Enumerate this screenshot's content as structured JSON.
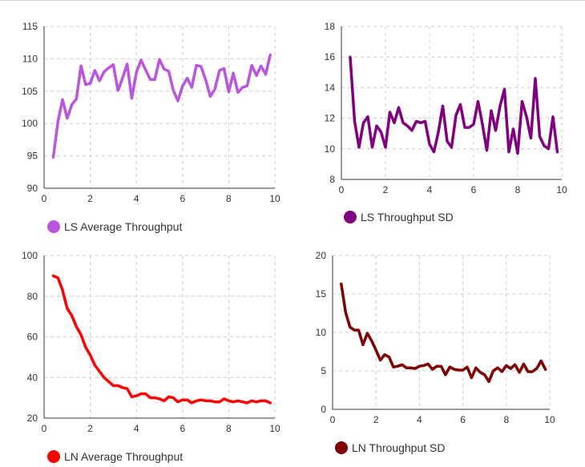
{
  "chart_data": [
    {
      "type": "line",
      "title": "",
      "xlabel": "",
      "ylabel": "",
      "xlim": [
        0,
        10
      ],
      "ylim": [
        90,
        115
      ],
      "xticks": [
        0,
        2,
        4,
        6,
        8,
        10
      ],
      "yticks": [
        90,
        95,
        100,
        105,
        110,
        115
      ],
      "grid": true,
      "legend_position": "bottom-left",
      "series": [
        {
          "name": "LS Average Throughput",
          "color": "#bb55dd",
          "x": [
            0.4,
            0.6,
            0.8,
            1.0,
            1.2,
            1.4,
            1.6,
            1.8,
            2.0,
            2.2,
            2.4,
            2.6,
            2.8,
            3.0,
            3.2,
            3.4,
            3.6,
            3.8,
            4.0,
            4.2,
            4.4,
            4.6,
            4.8,
            5.0,
            5.2,
            5.4,
            5.6,
            5.8,
            6.0,
            6.2,
            6.4,
            6.6,
            6.8,
            7.0,
            7.2,
            7.4,
            7.6,
            7.8,
            8.0,
            8.2,
            8.4,
            8.6,
            8.8,
            9.0,
            9.2,
            9.4,
            9.6,
            9.8
          ],
          "y": [
            94.8,
            100.3,
            103.7,
            100.8,
            102.9,
            103.8,
            108.9,
            106.0,
            106.2,
            108.2,
            106.6,
            108.0,
            108.6,
            109.1,
            105.1,
            107.0,
            109.2,
            103.9,
            107.9,
            109.8,
            108.3,
            106.8,
            106.8,
            109.9,
            108.4,
            108.1,
            105.1,
            103.5,
            105.8,
            107.0,
            105.6,
            109.0,
            108.8,
            106.8,
            104.2,
            105.3,
            108.2,
            108.5,
            104.9,
            107.8,
            104.8,
            105.6,
            105.8,
            109.0,
            107.4,
            108.9,
            107.6,
            110.6
          ]
        }
      ]
    },
    {
      "type": "line",
      "title": "",
      "xlabel": "",
      "ylabel": "",
      "xlim": [
        0,
        10
      ],
      "ylim": [
        8,
        18
      ],
      "xticks": [
        0,
        2,
        4,
        6,
        8,
        10
      ],
      "yticks": [
        8,
        10,
        12,
        14,
        16,
        18
      ],
      "grid": true,
      "legend_position": "bottom-left",
      "series": [
        {
          "name": "LS Throughput SD",
          "color": "#800080",
          "x": [
            0.4,
            0.6,
            0.8,
            1.0,
            1.2,
            1.4,
            1.6,
            1.8,
            2.0,
            2.2,
            2.4,
            2.6,
            2.8,
            3.0,
            3.2,
            3.4,
            3.6,
            3.8,
            4.0,
            4.2,
            4.4,
            4.6,
            4.8,
            5.0,
            5.2,
            5.4,
            5.6,
            5.8,
            6.0,
            6.2,
            6.4,
            6.6,
            6.8,
            7.0,
            7.2,
            7.4,
            7.6,
            7.8,
            8.0,
            8.2,
            8.4,
            8.6,
            8.8,
            9.0,
            9.2,
            9.4,
            9.6,
            9.8
          ],
          "y": [
            16.0,
            11.8,
            10.1,
            11.7,
            12.1,
            10.1,
            11.5,
            11.1,
            10.1,
            12.4,
            11.7,
            12.7,
            11.7,
            11.5,
            11.2,
            11.8,
            11.7,
            11.8,
            10.3,
            9.8,
            11.1,
            12.8,
            10.5,
            10.1,
            12.2,
            12.9,
            11.4,
            11.4,
            11.6,
            13.1,
            11.6,
            9.9,
            12.5,
            11.2,
            12.8,
            13.9,
            9.8,
            11.3,
            9.7,
            13.1,
            12.1,
            10.7,
            14.6,
            10.8,
            10.2,
            10.0,
            12.1,
            9.8
          ]
        }
      ]
    },
    {
      "type": "line",
      "title": "",
      "xlabel": "",
      "ylabel": "",
      "xlim": [
        0,
        10
      ],
      "ylim": [
        20,
        100
      ],
      "xticks": [
        0,
        2,
        4,
        6,
        8,
        10
      ],
      "yticks": [
        20,
        40,
        60,
        80,
        100
      ],
      "grid": true,
      "legend_position": "bottom-left",
      "series": [
        {
          "name": "LN Average Throughput",
          "color": "#ff0000",
          "x": [
            0.4,
            0.6,
            0.8,
            1.0,
            1.2,
            1.4,
            1.6,
            1.8,
            2.0,
            2.2,
            2.4,
            2.6,
            2.8,
            3.0,
            3.2,
            3.4,
            3.6,
            3.8,
            4.0,
            4.2,
            4.4,
            4.6,
            4.8,
            5.0,
            5.2,
            5.4,
            5.6,
            5.8,
            6.0,
            6.2,
            6.4,
            6.6,
            6.8,
            7.0,
            7.2,
            7.4,
            7.6,
            7.8,
            8.0,
            8.2,
            8.4,
            8.6,
            8.8,
            9.0,
            9.2,
            9.4,
            9.6,
            9.8
          ],
          "y": [
            90.0,
            89.0,
            83.0,
            74.0,
            70.5,
            65.0,
            61.0,
            55.0,
            51.0,
            46.0,
            43.0,
            40.0,
            38.0,
            36.0,
            36.0,
            35.0,
            34.5,
            30.5,
            31.0,
            32.0,
            32.0,
            30.0,
            30.0,
            29.5,
            28.5,
            30.5,
            30.0,
            28.0,
            29.0,
            29.0,
            27.5,
            28.5,
            29.0,
            28.5,
            28.5,
            28.0,
            28.0,
            29.5,
            28.5,
            28.0,
            28.5,
            28.0,
            27.5,
            28.5,
            28.0,
            28.5,
            28.5,
            27.5
          ]
        }
      ]
    },
    {
      "type": "line",
      "title": "",
      "xlabel": "",
      "ylabel": "",
      "xlim": [
        0,
        10
      ],
      "ylim": [
        0,
        20
      ],
      "xticks": [
        0,
        2,
        4,
        6,
        8,
        10
      ],
      "yticks": [
        0,
        5,
        10,
        15,
        20
      ],
      "grid": true,
      "legend_position": "bottom-left",
      "series": [
        {
          "name": "LN Throughput SD",
          "color": "#800000",
          "x": [
            0.4,
            0.6,
            0.8,
            1.0,
            1.2,
            1.4,
            1.6,
            1.8,
            2.0,
            2.2,
            2.4,
            2.6,
            2.8,
            3.0,
            3.2,
            3.4,
            3.6,
            3.8,
            4.0,
            4.2,
            4.4,
            4.6,
            4.8,
            5.0,
            5.2,
            5.4,
            5.6,
            5.8,
            6.0,
            6.2,
            6.4,
            6.6,
            6.8,
            7.0,
            7.2,
            7.4,
            7.6,
            7.8,
            8.0,
            8.2,
            8.4,
            8.6,
            8.8,
            9.0,
            9.2,
            9.4,
            9.6,
            9.8
          ],
          "y": [
            16.3,
            12.6,
            10.7,
            10.3,
            10.3,
            8.4,
            9.9,
            8.9,
            7.7,
            6.4,
            7.1,
            6.8,
            5.5,
            5.6,
            5.8,
            5.4,
            5.4,
            5.3,
            5.6,
            5.7,
            5.9,
            5.2,
            5.6,
            5.6,
            4.5,
            5.5,
            5.2,
            5.1,
            5.1,
            5.5,
            4.1,
            5.4,
            4.8,
            4.5,
            3.6,
            5.0,
            5.4,
            4.9,
            5.7,
            5.3,
            5.8,
            4.8,
            5.9,
            4.9,
            4.9,
            5.3,
            6.3,
            5.2
          ]
        }
      ]
    }
  ]
}
